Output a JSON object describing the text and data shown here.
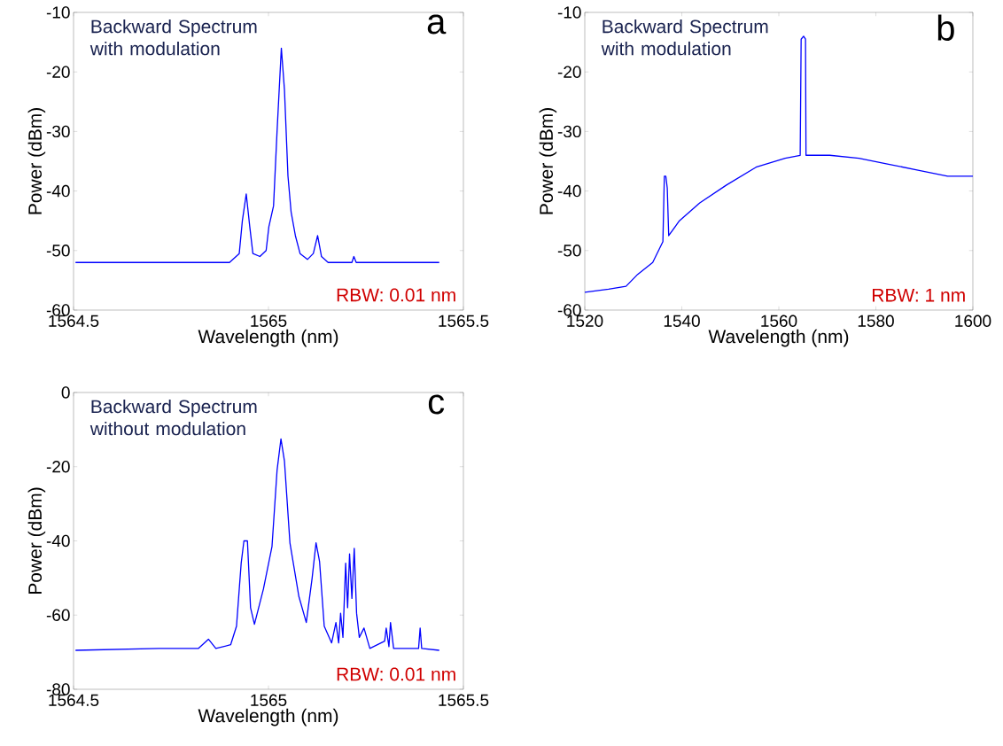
{
  "chart_data": [
    {
      "type": "line",
      "title": "a",
      "xlabel": "Wavelength (nm)",
      "ylabel": "Power (dBm)",
      "color": "#0000ff",
      "marker": "none",
      "line_style": "solid",
      "xlim": [
        1564.5,
        1565.5
      ],
      "ylim": [
        -60,
        -10
      ],
      "xticks": [
        1564.5,
        1565,
        1565.5
      ],
      "yticks": [
        -60,
        -50,
        -40,
        -30,
        -20,
        -10
      ],
      "annotations": [
        "Backward Spectrum with modulation",
        "RBW: 0.01 nm"
      ],
      "x": [
        1564.505,
        1564.72,
        1564.9,
        1564.925,
        1564.933,
        1564.943,
        1564.952,
        1564.96,
        1564.978,
        1564.994,
        1565.001,
        1565.013,
        1565.022,
        1565.033,
        1565.041,
        1565.05,
        1565.058,
        1565.069,
        1565.081,
        1565.1,
        1565.115,
        1565.126,
        1565.136,
        1565.153,
        1565.214,
        1565.219,
        1565.225,
        1565.438
      ],
      "values": [
        -52,
        -52,
        -52,
        -50.5,
        -45,
        -40.5,
        -46,
        -50.5,
        -51,
        -50,
        -46,
        -42.5,
        -30,
        -16,
        -23,
        -37.5,
        -43.5,
        -47.5,
        -50.5,
        -51.5,
        -50.5,
        -47.5,
        -51,
        -52,
        -52,
        -51,
        -52,
        -52
      ]
    },
    {
      "type": "line",
      "title": "b",
      "xlabel": "Wavelength (nm)",
      "ylabel": "Power (dBm)",
      "color": "#0000ff",
      "marker": "none",
      "line_style": "solid",
      "xlim": [
        1520,
        1600
      ],
      "ylim": [
        -60,
        -10
      ],
      "xticks": [
        1520,
        1540,
        1560,
        1580,
        1600
      ],
      "yticks": [
        -60,
        -50,
        -40,
        -30,
        -20,
        -10
      ],
      "annotations": [
        "Backward Spectrum with modulation",
        "RBW: 1 nm"
      ],
      "x": [
        1520,
        1524.9,
        1528.5,
        1530.9,
        1534,
        1536.1,
        1536.4,
        1536.7,
        1537,
        1537.3,
        1539.5,
        1543.7,
        1549.2,
        1555.3,
        1561.3,
        1564.4,
        1564.6,
        1565.1,
        1565.5,
        1565.6,
        1567.4,
        1570.5,
        1576.5,
        1582.6,
        1588.7,
        1594.8,
        1600
      ],
      "values": [
        -57,
        -56.5,
        -56,
        -54,
        -52,
        -48.5,
        -37.5,
        -37.5,
        -39.5,
        -47.5,
        -45,
        -42,
        -39,
        -36,
        -34.5,
        -34,
        -14.5,
        -14,
        -14.5,
        -34,
        -34,
        -34,
        -34.5,
        -35.5,
        -36.5,
        -37.5,
        -37.5
      ]
    },
    {
      "type": "line",
      "title": "c",
      "xlabel": "Wavelength (nm)",
      "ylabel": "Power (dBm)",
      "color": "#0000ff",
      "marker": "none",
      "line_style": "solid",
      "xlim": [
        1564.5,
        1565.5
      ],
      "ylim": [
        -80,
        0
      ],
      "xticks": [
        1564.5,
        1565,
        1565.5
      ],
      "yticks": [
        -80,
        -60,
        -40,
        -20,
        0
      ],
      "annotations": [
        "Backward Spectrum without modulation",
        "RBW: 0.01 nm"
      ],
      "x": [
        1564.505,
        1564.72,
        1564.82,
        1564.846,
        1564.865,
        1564.903,
        1564.918,
        1564.93,
        1564.937,
        1564.946,
        1564.954,
        1564.964,
        1564.987,
        1565.009,
        1565.022,
        1565.032,
        1565.041,
        1565.055,
        1565.078,
        1565.097,
        1565.112,
        1565.122,
        1565.131,
        1565.143,
        1565.162,
        1565.173,
        1565.18,
        1565.185,
        1565.191,
        1565.198,
        1565.203,
        1565.208,
        1565.214,
        1565.22,
        1565.226,
        1565.233,
        1565.245,
        1565.26,
        1565.298,
        1565.302,
        1565.309,
        1565.313,
        1565.321,
        1565.385,
        1565.389,
        1565.393,
        1565.438
      ],
      "values": [
        -69.5,
        -69,
        -69,
        -66.5,
        -69,
        -68,
        -63,
        -46,
        -40,
        -40,
        -58,
        -62.5,
        -53,
        -41.5,
        -21,
        -12.5,
        -18.5,
        -40.5,
        -55,
        -62,
        -50,
        -40.5,
        -45.5,
        -63,
        -67.5,
        -62,
        -67.5,
        -59.5,
        -66,
        -46,
        -58,
        -43.5,
        -55.5,
        -42,
        -59.5,
        -66,
        -63.5,
        -69,
        -67,
        -63.5,
        -68.5,
        -62,
        -69,
        -69,
        -63.5,
        -69,
        -69.5
      ]
    }
  ]
}
